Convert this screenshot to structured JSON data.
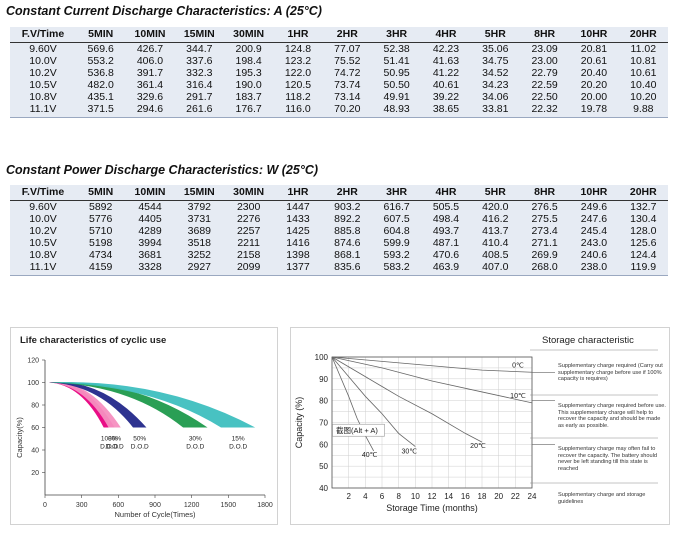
{
  "current_table": {
    "title": "Constant Current Discharge Characteristics: A (25°C)",
    "headers": [
      "F.V/Time",
      "5MIN",
      "10MIN",
      "15MIN",
      "30MIN",
      "1HR",
      "2HR",
      "3HR",
      "4HR",
      "5HR",
      "8HR",
      "10HR",
      "20HR"
    ],
    "rows": [
      [
        "9.60V",
        "569.6",
        "426.7",
        "344.7",
        "200.9",
        "124.8",
        "77.07",
        "52.38",
        "42.23",
        "35.06",
        "23.09",
        "20.81",
        "11.02"
      ],
      [
        "10.0V",
        "553.2",
        "406.0",
        "337.6",
        "198.4",
        "123.2",
        "75.52",
        "51.41",
        "41.63",
        "34.75",
        "23.00",
        "20.61",
        "10.81"
      ],
      [
        "10.2V",
        "536.8",
        "391.7",
        "332.3",
        "195.3",
        "122.0",
        "74.72",
        "50.95",
        "41.22",
        "34.52",
        "22.79",
        "20.40",
        "10.61"
      ],
      [
        "10.5V",
        "482.0",
        "361.4",
        "316.4",
        "190.0",
        "120.5",
        "73.74",
        "50.50",
        "40.61",
        "34.23",
        "22.59",
        "20.20",
        "10.40"
      ],
      [
        "10.8V",
        "435.1",
        "329.6",
        "291.7",
        "183.7",
        "118.2",
        "73.14",
        "49.91",
        "39.22",
        "34.06",
        "22.50",
        "20.00",
        "10.20"
      ],
      [
        "11.1V",
        "371.5",
        "294.6",
        "261.6",
        "176.7",
        "116.0",
        "70.20",
        "48.93",
        "38.65",
        "33.81",
        "22.32",
        "19.78",
        "9.88"
      ]
    ]
  },
  "power_table": {
    "title": "Constant Power Discharge Characteristics: W (25°C)",
    "headers": [
      "F.V/Time",
      "5MIN",
      "10MIN",
      "15MIN",
      "30MIN",
      "1HR",
      "2HR",
      "3HR",
      "4HR",
      "5HR",
      "8HR",
      "10HR",
      "20HR"
    ],
    "rows": [
      [
        "9.60V",
        "5892",
        "4544",
        "3792",
        "2300",
        "1447",
        "903.2",
        "616.7",
        "505.5",
        "420.0",
        "276.5",
        "249.6",
        "132.7"
      ],
      [
        "10.0V",
        "5776",
        "4405",
        "3731",
        "2276",
        "1433",
        "892.2",
        "607.5",
        "498.4",
        "416.2",
        "275.5",
        "247.6",
        "130.4"
      ],
      [
        "10.2V",
        "5710",
        "4289",
        "3689",
        "2257",
        "1425",
        "885.8",
        "604.8",
        "493.7",
        "413.7",
        "273.4",
        "245.4",
        "128.0"
      ],
      [
        "10.5V",
        "5198",
        "3994",
        "3518",
        "2211",
        "1416",
        "874.6",
        "599.9",
        "487.1",
        "410.4",
        "271.1",
        "243.0",
        "125.6"
      ],
      [
        "10.8V",
        "4734",
        "3681",
        "3252",
        "2158",
        "1398",
        "868.1",
        "593.2",
        "470.6",
        "408.5",
        "269.9",
        "240.6",
        "124.4"
      ],
      [
        "11.1V",
        "4159",
        "3328",
        "2927",
        "2099",
        "1377",
        "835.6",
        "583.2",
        "463.9",
        "407.0",
        "268.0",
        "238.0",
        "119.9"
      ]
    ]
  },
  "life_chart": {
    "title": "Life characteristics of cyclic use",
    "ylabel": "Capacity(%)",
    "xlabel": "Number of Cycle(Times)",
    "y_ticks": [
      "120",
      "100",
      "80",
      "60",
      "40",
      "20"
    ],
    "x_ticks": [
      "0",
      "300",
      "600",
      "900",
      "1200",
      "1500",
      "1800"
    ],
    "dod_suffix": "D.O.D",
    "chart_data": {
      "type": "area",
      "title": "Life characteristics of cyclic use",
      "xlabel": "Number of Cycle(Times)",
      "ylabel": "Capacity(%)",
      "xlim": [
        0,
        1800
      ],
      "ylim": [
        0,
        120
      ],
      "series": [
        {
          "name": "100%",
          "color": "#e8007f",
          "end_min": 480,
          "end_max": 570
        },
        {
          "name": "80%",
          "color": "#f58fc0",
          "end_min": 520,
          "end_max": 620
        },
        {
          "name": "50%",
          "color": "#23288a",
          "end_min": 720,
          "end_max": 830
        },
        {
          "name": "30%",
          "color": "#1f9a4c",
          "end_min": 1130,
          "end_max": 1330
        },
        {
          "name": "15%",
          "color": "#3ebfbf",
          "end_min": 1440,
          "end_max": 1720
        }
      ]
    }
  },
  "storage_chart": {
    "title": "Storage characteristic",
    "ylabel": "Capacity (%)",
    "xlabel": "Storage Time (months)",
    "y_ticks": [
      "100",
      "90",
      "80",
      "70",
      "60",
      "50",
      "40"
    ],
    "x_ticks": [
      "2",
      "4",
      "6",
      "8",
      "10",
      "12",
      "14",
      "16",
      "18",
      "20",
      "22",
      "24"
    ],
    "screenshot_badge": "截图(Alt + A)",
    "chart_data": {
      "type": "line",
      "title": "Storage characteristic",
      "xlabel": "Storage Time (months)",
      "ylabel": "Capacity (%)",
      "xlim": [
        0,
        24
      ],
      "ylim": [
        40,
        100
      ],
      "series": [
        {
          "name": "0℃",
          "x": [
            0,
            6,
            12,
            18,
            24
          ],
          "y": [
            100,
            98,
            96,
            94,
            93
          ]
        },
        {
          "name": "10℃",
          "x": [
            0,
            6,
            12,
            18,
            24
          ],
          "y": [
            100,
            95,
            89,
            84,
            79
          ]
        },
        {
          "name": "20℃",
          "x": [
            0,
            4,
            8,
            12,
            16,
            18
          ],
          "y": [
            100,
            91,
            82,
            74,
            65,
            61
          ]
        },
        {
          "name": "30℃",
          "x": [
            0,
            2,
            4,
            6,
            8,
            10
          ],
          "y": [
            100,
            91,
            82,
            74,
            65,
            59
          ]
        },
        {
          "name": "40℃",
          "x": [
            0,
            1,
            2,
            3,
            4,
            5
          ],
          "y": [
            100,
            91,
            82,
            72,
            64,
            57
          ]
        }
      ]
    },
    "notes": [
      "Supplementary charge required (Carry out supplementary charge before use if 100% capacity is requires)",
      "Supplementary charge required before use. This supplementary charge will help to recover the capacity and should be made as early as possible.",
      "Supplementary charge may often fail to recover the capacity. The battery should never be left standing till this state is reached",
      "Supplementary charge and storage guidelines"
    ]
  }
}
